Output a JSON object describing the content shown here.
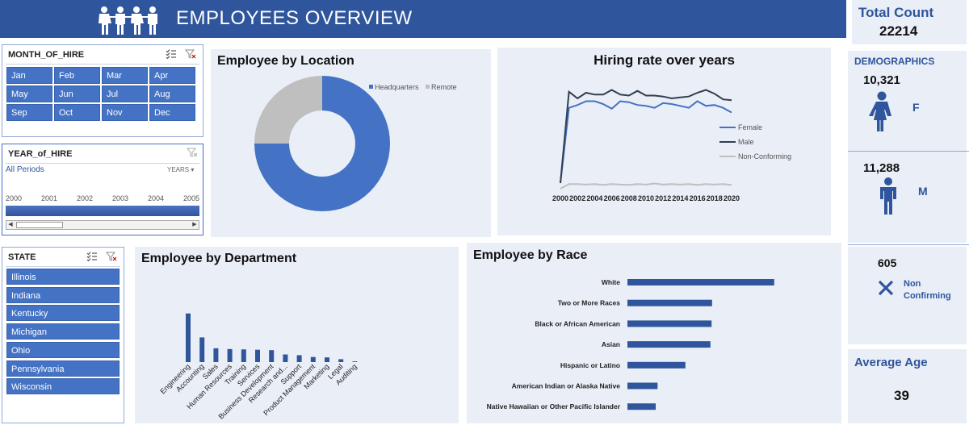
{
  "header": {
    "title": "EMPLOYEES OVERVIEW",
    "icon": "people-group-icon"
  },
  "month_slicer": {
    "title": "MONTH_OF_HIRE",
    "months": [
      "Jan",
      "Feb",
      "Mar",
      "Apr",
      "May",
      "Jun",
      "Jul",
      "Aug",
      "Sep",
      "Oct",
      "Nov",
      "Dec"
    ]
  },
  "year_slicer": {
    "title": "YEAR_of_HIRE",
    "period": "All Periods",
    "level": "YEARS",
    "years": [
      "2000",
      "2001",
      "2002",
      "2003",
      "2004",
      "2005"
    ]
  },
  "state_slicer": {
    "title": "STATE",
    "states": [
      "Illinois",
      "Indiana",
      "Kentucky",
      "Michigan",
      "Ohio",
      "Pennsylvania",
      "Wisconsin"
    ]
  },
  "kpis": {
    "total_label": "Total Count",
    "total_value": "22214",
    "demographics_label": "DEMOGRAPHICS",
    "female_value": "10,321",
    "female_label": "F",
    "male_value": "11,288",
    "male_label": "M",
    "nonconf_value": "605",
    "nonconf_label_1": "Non",
    "nonconf_label_2": "Confirming",
    "avg_age_label": "Average Age",
    "avg_age_value": "39"
  },
  "chart_data": [
    {
      "id": "location",
      "type": "pie",
      "title": "Employee by Location",
      "labels": [
        "Headquarters",
        "Remote"
      ],
      "values": [
        75,
        25
      ],
      "colors": [
        "#4472c4",
        "#bfbfbf"
      ]
    },
    {
      "id": "hiring",
      "type": "line",
      "title": "Hiring rate over years",
      "x": [
        2000,
        2001,
        2002,
        2003,
        2004,
        2005,
        2006,
        2007,
        2008,
        2009,
        2010,
        2011,
        2012,
        2013,
        2014,
        2015,
        2016,
        2017,
        2018,
        2019,
        2020
      ],
      "x_ticks": [
        "2000",
        "2002",
        "2004",
        "2006",
        "2008",
        "2010",
        "2012",
        "2014",
        "2016",
        "2018",
        "2020"
      ],
      "ylim": [
        0,
        600
      ],
      "series": [
        {
          "name": "Female",
          "color": "#4472c4",
          "values": [
            30,
            430,
            445,
            465,
            465,
            450,
            425,
            465,
            460,
            445,
            440,
            430,
            455,
            450,
            440,
            430,
            465,
            440,
            445,
            430,
            405
          ]
        },
        {
          "name": "Male",
          "color": "#323f4f",
          "values": [
            30,
            515,
            480,
            510,
            500,
            500,
            525,
            500,
            495,
            520,
            495,
            495,
            490,
            480,
            485,
            490,
            510,
            525,
            505,
            475,
            470
          ]
        },
        {
          "name": "Non-Conforming",
          "color": "#bfbfbf",
          "values": [
            0,
            25,
            25,
            22,
            25,
            20,
            25,
            22,
            20,
            25,
            22,
            28,
            22,
            25,
            22,
            25,
            20,
            25,
            22,
            25,
            20
          ]
        }
      ]
    },
    {
      "id": "department",
      "type": "bar",
      "title": "Employee by Department",
      "categories": [
        "Engineering",
        "Accounting",
        "Sales",
        "Human Resources",
        "Training",
        "Services",
        "Business Development",
        "Research and...",
        "Support",
        "Product Management",
        "Marketing",
        "Legal",
        "Auditing"
      ],
      "values": [
        6700,
        3400,
        1900,
        1800,
        1750,
        1700,
        1650,
        1050,
        950,
        700,
        650,
        400,
        100
      ],
      "ylim": [
        0,
        7000
      ],
      "color": "#2f559c"
    },
    {
      "id": "race",
      "type": "bar",
      "orientation": "horizontal",
      "title": "Employee by Race",
      "categories": [
        "White",
        "Two or More Races",
        "Black or African American",
        "Asian",
        "Hispanic or Latino",
        "American Indian or Alaska Native",
        "Native Hawaiian or Other Pacific Islander"
      ],
      "values": [
        6330,
        3650,
        3630,
        3580,
        2500,
        1300,
        1220
      ],
      "xlim": [
        0,
        7000
      ],
      "color": "#2f559c"
    }
  ]
}
